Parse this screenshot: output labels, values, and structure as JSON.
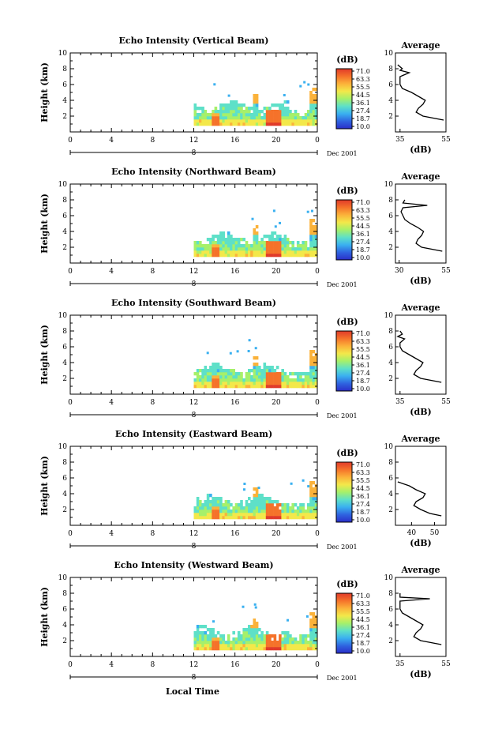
{
  "figure": {
    "xlabel_bottom": "Local Time",
    "date_label": "Dec 2001",
    "time_ticks": [
      "0",
      "4",
      "8",
      "12",
      "16",
      "20",
      "0"
    ],
    "day_marker": "8",
    "colorbar_unit": "(dB)",
    "colorbar_ticks": [
      "71.0",
      "63.3",
      "55.5",
      "44.5",
      "36.1",
      "27.4",
      "18.7",
      "10.0"
    ],
    "colorbar_colors": [
      "#e03a2a",
      "#f5722a",
      "#fbb23a",
      "#f3e84a",
      "#a6f06a",
      "#5ee0c8",
      "#3ab0f0",
      "#2f64e0",
      "#2a2ec8"
    ],
    "height_ticks": [
      "10",
      "8",
      "6",
      "4",
      "2"
    ],
    "ylabel": "Height (km)",
    "avg_title": "Average",
    "avg_xlabel": "(dB)"
  },
  "chart_data": [
    {
      "type": "heatmap",
      "title": "Echo Intensity (Vertical Beam)",
      "xlabel": "Local Time",
      "ylabel": "Height (km)",
      "xlim": [
        0,
        24
      ],
      "ylim": [
        0,
        10
      ],
      "data_start_hour": 12,
      "profile": {
        "title": "Average",
        "xlabel": "(dB)",
        "xlim": [
          33,
          55
        ],
        "xticks": [
          "35",
          "55"
        ],
        "height": [
          1.5,
          2.0,
          2.5,
          3.0,
          3.5,
          4.0,
          4.5,
          5.0,
          5.5,
          6.0,
          6.5,
          7.0,
          7.5,
          7.8,
          8.0,
          8.5
        ],
        "value": [
          54,
          45,
          42,
          43,
          45,
          46,
          43,
          40,
          36,
          35,
          35,
          35,
          39,
          35,
          36,
          34
        ]
      }
    },
    {
      "type": "heatmap",
      "title": "Echo Intensity (Northward Beam)",
      "xlabel": "Local Time",
      "ylabel": "Height (km)",
      "xlim": [
        0,
        24
      ],
      "ylim": [
        0,
        10
      ],
      "data_start_hour": 12,
      "profile": {
        "title": "Average",
        "xlabel": "(dB)",
        "xlim": [
          28,
          55
        ],
        "xticks": [
          "30",
          "55"
        ],
        "height": [
          1.5,
          2.0,
          2.5,
          3.0,
          3.5,
          4.0,
          4.5,
          5.0,
          5.5,
          6.0,
          6.5,
          7.0,
          7.3,
          7.6,
          8.0
        ],
        "value": [
          53,
          42,
          39,
          40,
          42,
          43,
          40,
          36,
          33,
          32,
          31,
          32,
          45,
          32,
          33
        ]
      }
    },
    {
      "type": "heatmap",
      "title": "Echo Intensity (Southward Beam)",
      "xlabel": "Local Time",
      "ylabel": "Height (km)",
      "xlim": [
        33,
        55
      ],
      "ylim": [
        0,
        10
      ],
      "data_start_hour": 12,
      "profile": {
        "title": "Average",
        "xlabel": "(dB)",
        "xlim": [
          33,
          55
        ],
        "xticks": [
          "35",
          "55"
        ],
        "height": [
          1.5,
          2.0,
          2.5,
          3.0,
          3.5,
          4.0,
          4.5,
          5.0,
          5.5,
          6.0,
          6.5,
          7.0,
          7.3,
          7.6,
          8.0
        ],
        "value": [
          53,
          44,
          41,
          42,
          44,
          45,
          42,
          39,
          36,
          35,
          35,
          37,
          34,
          36,
          35
        ]
      }
    },
    {
      "type": "heatmap",
      "title": "Echo Intensity (Eastward Beam)",
      "xlabel": "Local Time",
      "ylabel": "Height (km)",
      "xlim": [
        0,
        24
      ],
      "ylim": [
        0,
        10
      ],
      "data_start_hour": 12,
      "profile": {
        "title": "Average",
        "xlabel": "(dB)",
        "xlim": [
          33,
          55
        ],
        "xticks": [
          "40",
          "50"
        ],
        "height": [
          1.2,
          1.5,
          2.0,
          2.5,
          3.0,
          3.5,
          4.0,
          4.5,
          5.0,
          5.5
        ],
        "value": [
          53,
          48,
          44,
          41,
          42,
          45,
          46,
          42,
          39,
          34
        ]
      }
    },
    {
      "type": "heatmap",
      "title": "Echo Intensity (Westward Beam)",
      "xlabel": "Local Time",
      "ylabel": "Height (km)",
      "xlim": [
        0,
        24
      ],
      "ylim": [
        0,
        10
      ],
      "data_start_hour": 12,
      "profile": {
        "title": "Average",
        "xlabel": "(dB)",
        "xlim": [
          33,
          55
        ],
        "xticks": [
          "35",
          "55"
        ],
        "height": [
          1.5,
          2.0,
          2.5,
          3.0,
          3.5,
          4.0,
          4.5,
          5.0,
          5.5,
          6.0,
          6.5,
          7.0,
          7.3,
          7.5,
          8.0
        ],
        "value": [
          53,
          44,
          41,
          42,
          44,
          45,
          42,
          39,
          36,
          35,
          35,
          35,
          48,
          35,
          35
        ]
      }
    }
  ]
}
